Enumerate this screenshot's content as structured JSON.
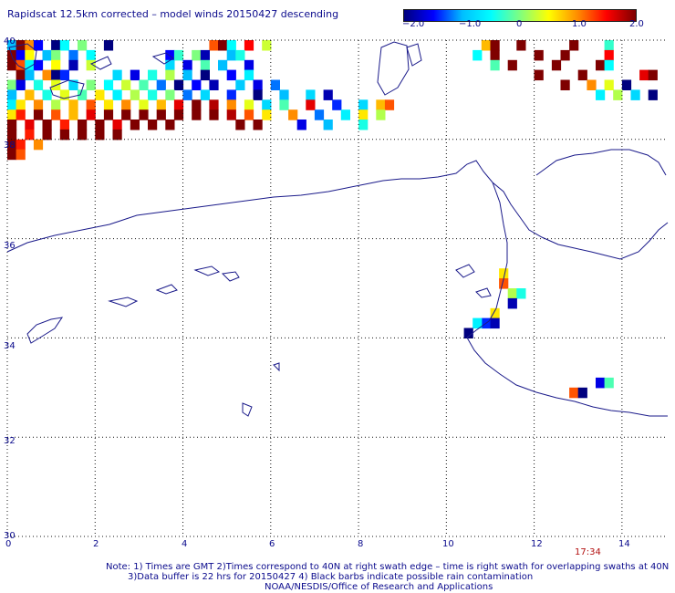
{
  "title": "Rapidscat 12.5km corrected – model winds 20150427 descending",
  "colorbar": {
    "labels": [
      "−2.0",
      "−1.0",
      "0",
      "1.0",
      "2.0"
    ],
    "values": [
      -2.0,
      -1.0,
      0,
      1.0,
      2.0
    ],
    "range": [
      -2.0,
      2.0
    ],
    "colormap": [
      "#00007f",
      "#0000ff",
      "#00bfff",
      "#00ffff",
      "#7fff7f",
      "#ffff00",
      "#ff8c00",
      "#ff0000",
      "#7f0000"
    ]
  },
  "axes": {
    "x_ticks": [
      "0",
      "2",
      "4",
      "6",
      "8",
      "10",
      "12",
      "14"
    ],
    "y_ticks": [
      "40",
      "38",
      "36",
      "34",
      "32",
      "30"
    ],
    "lon_range": [
      0,
      15
    ],
    "lat_range": [
      30,
      40
    ],
    "grid": "dotted"
  },
  "time_label": "17:34",
  "notes": [
    "Note: 1) Times are GMT 2)Times correspond to 40N at right swath edge – time is right swath for overlapping swaths at 40N",
    "3)Data buffer is 22 hrs for 20150427 4) Black barbs indicate possible rain contamination",
    "NOAA/NESDIS/Office of Research and Applications"
  ],
  "chart_data": {
    "type": "heatmap",
    "value_range": [
      -2.0,
      2.0
    ],
    "grid_step_deg": 0.2,
    "regions": [
      {
        "name": "north-west swath",
        "lon_range": [
          0,
          8.8
        ],
        "lat_range": [
          38.4,
          40
        ],
        "values": "mixed -2.0 to 0.5 in north, 1.0 to 2.0 along southern edge"
      },
      {
        "name": "north-east swath",
        "lon_range": [
          10.8,
          14.6
        ],
        "lat_range": [
          38.4,
          40
        ],
        "values": "mostly 2.0 with 0 to -2.0 at edges"
      }
    ],
    "cells": [
      {
        "lon": 0.0,
        "lat": 39.8,
        "v": -1.0
      },
      {
        "lon": 0.2,
        "lat": 39.8,
        "v": 2.0
      },
      {
        "lon": 0.4,
        "lat": 39.8,
        "v": 1.0
      },
      {
        "lon": 0.6,
        "lat": 39.8,
        "v": -1.5
      },
      {
        "lon": 1.0,
        "lat": 39.8,
        "v": -2.0
      },
      {
        "lon": 1.2,
        "lat": 39.8,
        "v": -0.5
      },
      {
        "lon": 1.6,
        "lat": 39.8,
        "v": 0.0
      },
      {
        "lon": 2.2,
        "lat": 39.8,
        "v": -2.0
      },
      {
        "lon": 4.6,
        "lat": 39.8,
        "v": 1.2
      },
      {
        "lon": 4.8,
        "lat": 39.8,
        "v": 2.0
      },
      {
        "lon": 5.0,
        "lat": 39.8,
        "v": -0.5
      },
      {
        "lon": 5.4,
        "lat": 39.8,
        "v": 1.5
      },
      {
        "lon": 5.8,
        "lat": 39.8,
        "v": 0.3
      },
      {
        "lon": 10.8,
        "lat": 39.8,
        "v": 0.8
      },
      {
        "lon": 11.0,
        "lat": 39.8,
        "v": 2.0
      },
      {
        "lon": 11.6,
        "lat": 39.8,
        "v": 2.0
      },
      {
        "lon": 12.8,
        "lat": 39.8,
        "v": 2.0
      },
      {
        "lon": 13.6,
        "lat": 39.8,
        "v": -0.3
      },
      {
        "lon": 0.0,
        "lat": 39.6,
        "v": 2.0
      },
      {
        "lon": 0.2,
        "lat": 39.6,
        "v": -1.5
      },
      {
        "lon": 0.4,
        "lat": 39.6,
        "v": 0.5
      },
      {
        "lon": 0.8,
        "lat": 39.6,
        "v": -1.0
      },
      {
        "lon": 1.0,
        "lat": 39.6,
        "v": 0.0
      },
      {
        "lon": 1.4,
        "lat": 39.6,
        "v": -1.2
      },
      {
        "lon": 1.8,
        "lat": 39.6,
        "v": -0.5
      },
      {
        "lon": 3.6,
        "lat": 39.6,
        "v": -1.5
      },
      {
        "lon": 3.8,
        "lat": 39.6,
        "v": -0.3
      },
      {
        "lon": 4.2,
        "lat": 39.6,
        "v": 0.0
      },
      {
        "lon": 4.4,
        "lat": 39.6,
        "v": -1.8
      },
      {
        "lon": 5.0,
        "lat": 39.6,
        "v": -1.0
      },
      {
        "lon": 5.2,
        "lat": 39.6,
        "v": -0.4
      },
      {
        "lon": 10.6,
        "lat": 39.6,
        "v": -0.5
      },
      {
        "lon": 11.0,
        "lat": 39.6,
        "v": 2.0
      },
      {
        "lon": 12.0,
        "lat": 39.6,
        "v": 2.0
      },
      {
        "lon": 12.6,
        "lat": 39.6,
        "v": 2.0
      },
      {
        "lon": 13.6,
        "lat": 39.6,
        "v": 1.5
      },
      {
        "lon": 0.0,
        "lat": 39.4,
        "v": 2.0
      },
      {
        "lon": 0.2,
        "lat": 39.4,
        "v": 1.2
      },
      {
        "lon": 0.4,
        "lat": 39.4,
        "v": -0.5
      },
      {
        "lon": 0.6,
        "lat": 39.4,
        "v": -1.5
      },
      {
        "lon": 1.0,
        "lat": 39.4,
        "v": 0.5
      },
      {
        "lon": 1.4,
        "lat": 39.4,
        "v": -1.8
      },
      {
        "lon": 1.8,
        "lat": 39.4,
        "v": 0.3
      },
      {
        "lon": 3.6,
        "lat": 39.4,
        "v": -0.8
      },
      {
        "lon": 4.0,
        "lat": 39.4,
        "v": -1.6
      },
      {
        "lon": 4.4,
        "lat": 39.4,
        "v": -0.2
      },
      {
        "lon": 4.8,
        "lat": 39.4,
        "v": -1.0
      },
      {
        "lon": 5.4,
        "lat": 39.4,
        "v": -1.6
      },
      {
        "lon": 11.0,
        "lat": 39.4,
        "v": -0.2
      },
      {
        "lon": 11.4,
        "lat": 39.4,
        "v": 2.0
      },
      {
        "lon": 12.4,
        "lat": 39.4,
        "v": 2.0
      },
      {
        "lon": 13.4,
        "lat": 39.4,
        "v": 2.0
      },
      {
        "lon": 13.6,
        "lat": 39.4,
        "v": -0.5
      },
      {
        "lon": 0.2,
        "lat": 39.2,
        "v": 2.0
      },
      {
        "lon": 0.4,
        "lat": 39.2,
        "v": -1.0
      },
      {
        "lon": 0.8,
        "lat": 39.2,
        "v": 1.0
      },
      {
        "lon": 1.0,
        "lat": 39.2,
        "v": -2.0
      },
      {
        "lon": 1.2,
        "lat": 39.2,
        "v": -1.4
      },
      {
        "lon": 2.4,
        "lat": 39.2,
        "v": -0.8
      },
      {
        "lon": 2.8,
        "lat": 39.2,
        "v": -1.6
      },
      {
        "lon": 3.2,
        "lat": 39.2,
        "v": -0.4
      },
      {
        "lon": 3.6,
        "lat": 39.2,
        "v": 0.2
      },
      {
        "lon": 4.0,
        "lat": 39.2,
        "v": -1.0
      },
      {
        "lon": 4.4,
        "lat": 39.2,
        "v": -2.0
      },
      {
        "lon": 5.0,
        "lat": 39.2,
        "v": -1.5
      },
      {
        "lon": 5.4,
        "lat": 39.2,
        "v": -0.6
      },
      {
        "lon": 12.0,
        "lat": 39.2,
        "v": 2.0
      },
      {
        "lon": 13.0,
        "lat": 39.2,
        "v": 2.0
      },
      {
        "lon": 14.4,
        "lat": 39.2,
        "v": 1.6
      },
      {
        "lon": 14.6,
        "lat": 39.2,
        "v": 2.0
      },
      {
        "lon": 0.0,
        "lat": 39.0,
        "v": 0.0
      },
      {
        "lon": 0.2,
        "lat": 39.0,
        "v": -1.6
      },
      {
        "lon": 0.6,
        "lat": 39.0,
        "v": -0.4
      },
      {
        "lon": 1.0,
        "lat": 39.0,
        "v": 0.4
      },
      {
        "lon": 1.4,
        "lat": 39.0,
        "v": -0.8
      },
      {
        "lon": 1.8,
        "lat": 39.0,
        "v": 0.0
      },
      {
        "lon": 2.2,
        "lat": 39.0,
        "v": -0.5
      },
      {
        "lon": 2.6,
        "lat": 39.0,
        "v": 0.3
      },
      {
        "lon": 3.0,
        "lat": 39.0,
        "v": -0.2
      },
      {
        "lon": 3.4,
        "lat": 39.0,
        "v": -1.2
      },
      {
        "lon": 3.8,
        "lat": 39.0,
        "v": -2.0
      },
      {
        "lon": 4.2,
        "lat": 39.0,
        "v": -1.5
      },
      {
        "lon": 4.6,
        "lat": 39.0,
        "v": -1.8
      },
      {
        "lon": 5.2,
        "lat": 39.0,
        "v": -0.9
      },
      {
        "lon": 5.6,
        "lat": 39.0,
        "v": -1.6
      },
      {
        "lon": 6.0,
        "lat": 39.0,
        "v": -1.2
      },
      {
        "lon": 12.6,
        "lat": 39.0,
        "v": 2.0
      },
      {
        "lon": 13.2,
        "lat": 39.0,
        "v": 1.0
      },
      {
        "lon": 13.6,
        "lat": 39.0,
        "v": 0.4
      },
      {
        "lon": 14.0,
        "lat": 39.0,
        "v": -2.0
      },
      {
        "lon": 0.0,
        "lat": 38.8,
        "v": -1.0
      },
      {
        "lon": 0.4,
        "lat": 38.8,
        "v": 0.8
      },
      {
        "lon": 0.8,
        "lat": 38.8,
        "v": -0.4
      },
      {
        "lon": 1.2,
        "lat": 38.8,
        "v": 0.4
      },
      {
        "lon": 1.6,
        "lat": 38.8,
        "v": -0.2
      },
      {
        "lon": 2.0,
        "lat": 38.8,
        "v": 0.6
      },
      {
        "lon": 2.4,
        "lat": 38.8,
        "v": -0.6
      },
      {
        "lon": 2.8,
        "lat": 38.8,
        "v": 0.2
      },
      {
        "lon": 3.2,
        "lat": 38.8,
        "v": -0.4
      },
      {
        "lon": 3.6,
        "lat": 38.8,
        "v": 0.0
      },
      {
        "lon": 4.0,
        "lat": 38.8,
        "v": -1.2
      },
      {
        "lon": 4.4,
        "lat": 38.8,
        "v": -0.8
      },
      {
        "lon": 5.0,
        "lat": 38.8,
        "v": -1.4
      },
      {
        "lon": 5.6,
        "lat": 38.8,
        "v": -2.0
      },
      {
        "lon": 6.2,
        "lat": 38.8,
        "v": -1.0
      },
      {
        "lon": 6.8,
        "lat": 38.8,
        "v": -0.8
      },
      {
        "lon": 7.2,
        "lat": 38.8,
        "v": -1.8
      },
      {
        "lon": 13.4,
        "lat": 38.8,
        "v": -0.6
      },
      {
        "lon": 13.8,
        "lat": 38.8,
        "v": 0.2
      },
      {
        "lon": 14.2,
        "lat": 38.8,
        "v": -0.8
      },
      {
        "lon": 14.6,
        "lat": 38.8,
        "v": -2.0
      },
      {
        "lon": 0.0,
        "lat": 38.6,
        "v": -0.6
      },
      {
        "lon": 0.2,
        "lat": 38.6,
        "v": 0.6
      },
      {
        "lon": 0.6,
        "lat": 38.6,
        "v": 1.0
      },
      {
        "lon": 1.0,
        "lat": 38.6,
        "v": 0.2
      },
      {
        "lon": 1.4,
        "lat": 38.6,
        "v": 0.8
      },
      {
        "lon": 1.8,
        "lat": 38.6,
        "v": 1.2
      },
      {
        "lon": 2.2,
        "lat": 38.6,
        "v": 0.6
      },
      {
        "lon": 2.6,
        "lat": 38.6,
        "v": 1.0
      },
      {
        "lon": 3.0,
        "lat": 38.6,
        "v": 0.4
      },
      {
        "lon": 3.4,
        "lat": 38.6,
        "v": 0.8
      },
      {
        "lon": 3.8,
        "lat": 38.6,
        "v": 1.6
      },
      {
        "lon": 4.2,
        "lat": 38.6,
        "v": 2.0
      },
      {
        "lon": 4.6,
        "lat": 38.6,
        "v": 1.8
      },
      {
        "lon": 5.0,
        "lat": 38.6,
        "v": 1.0
      },
      {
        "lon": 5.4,
        "lat": 38.6,
        "v": 0.4
      },
      {
        "lon": 5.8,
        "lat": 38.6,
        "v": -0.8
      },
      {
        "lon": 6.2,
        "lat": 38.6,
        "v": -0.2
      },
      {
        "lon": 6.8,
        "lat": 38.6,
        "v": 1.6
      },
      {
        "lon": 7.4,
        "lat": 38.6,
        "v": -1.4
      },
      {
        "lon": 8.0,
        "lat": 38.6,
        "v": -0.8
      },
      {
        "lon": 8.4,
        "lat": 38.6,
        "v": 0.8
      },
      {
        "lon": 8.6,
        "lat": 38.6,
        "v": 1.2
      },
      {
        "lon": 0.0,
        "lat": 38.4,
        "v": 0.6
      },
      {
        "lon": 0.2,
        "lat": 38.4,
        "v": 1.4
      },
      {
        "lon": 0.6,
        "lat": 38.4,
        "v": 2.0
      },
      {
        "lon": 1.0,
        "lat": 38.4,
        "v": 1.2
      },
      {
        "lon": 1.4,
        "lat": 38.4,
        "v": 0.8
      },
      {
        "lon": 1.8,
        "lat": 38.4,
        "v": 1.6
      },
      {
        "lon": 2.2,
        "lat": 38.4,
        "v": 2.0
      },
      {
        "lon": 2.6,
        "lat": 38.4,
        "v": 2.0
      },
      {
        "lon": 3.0,
        "lat": 38.4,
        "v": 2.0
      },
      {
        "lon": 3.4,
        "lat": 38.4,
        "v": 2.0
      },
      {
        "lon": 3.8,
        "lat": 38.4,
        "v": 2.0
      },
      {
        "lon": 4.2,
        "lat": 38.4,
        "v": 2.0
      },
      {
        "lon": 4.6,
        "lat": 38.4,
        "v": 2.0
      },
      {
        "lon": 5.0,
        "lat": 38.4,
        "v": 1.8
      },
      {
        "lon": 5.4,
        "lat": 38.4,
        "v": 1.2
      },
      {
        "lon": 5.8,
        "lat": 38.4,
        "v": 0.6
      },
      {
        "lon": 6.4,
        "lat": 38.4,
        "v": 1.0
      },
      {
        "lon": 7.0,
        "lat": 38.4,
        "v": -1.2
      },
      {
        "lon": 7.6,
        "lat": 38.4,
        "v": -0.6
      },
      {
        "lon": 8.0,
        "lat": 38.4,
        "v": 0.6
      },
      {
        "lon": 8.4,
        "lat": 38.4,
        "v": 0.2
      },
      {
        "lon": 0.0,
        "lat": 38.2,
        "v": 2.0
      },
      {
        "lon": 0.4,
        "lat": 38.2,
        "v": 1.6
      },
      {
        "lon": 0.8,
        "lat": 38.2,
        "v": 2.0
      },
      {
        "lon": 1.2,
        "lat": 38.2,
        "v": 1.4
      },
      {
        "lon": 1.6,
        "lat": 38.2,
        "v": 2.0
      },
      {
        "lon": 2.0,
        "lat": 38.2,
        "v": 2.0
      },
      {
        "lon": 2.4,
        "lat": 38.2,
        "v": 1.6
      },
      {
        "lon": 2.8,
        "lat": 38.2,
        "v": 2.0
      },
      {
        "lon": 3.2,
        "lat": 38.2,
        "v": 2.0
      },
      {
        "lon": 3.6,
        "lat": 38.2,
        "v": 2.0
      },
      {
        "lon": 5.2,
        "lat": 38.2,
        "v": 2.0
      },
      {
        "lon": 5.6,
        "lat": 38.2,
        "v": 2.0
      },
      {
        "lon": 6.6,
        "lat": 38.2,
        "v": -1.6
      },
      {
        "lon": 7.2,
        "lat": 38.2,
        "v": -1.0
      },
      {
        "lon": 8.0,
        "lat": 38.2,
        "v": -0.4
      },
      {
        "lon": 0.0,
        "lat": 38.0,
        "v": 2.0
      },
      {
        "lon": 0.4,
        "lat": 38.0,
        "v": 1.4
      },
      {
        "lon": 0.8,
        "lat": 38.0,
        "v": 2.0
      },
      {
        "lon": 1.2,
        "lat": 38.0,
        "v": 2.0
      },
      {
        "lon": 1.6,
        "lat": 38.0,
        "v": 2.0
      },
      {
        "lon": 2.0,
        "lat": 38.0,
        "v": 2.0
      },
      {
        "lon": 2.4,
        "lat": 38.0,
        "v": 2.0
      },
      {
        "lon": 0.0,
        "lat": 37.8,
        "v": 2.0
      },
      {
        "lon": 0.2,
        "lat": 37.8,
        "v": 1.4
      },
      {
        "lon": 0.6,
        "lat": 37.8,
        "v": 1.0
      },
      {
        "lon": 0.0,
        "lat": 37.6,
        "v": 2.0
      },
      {
        "lon": 0.2,
        "lat": 37.6,
        "v": 1.2
      },
      {
        "lon": 11.2,
        "lat": 35.2,
        "v": 0.6
      },
      {
        "lon": 11.2,
        "lat": 35.0,
        "v": 1.2
      },
      {
        "lon": 11.4,
        "lat": 34.8,
        "v": 0.2
      },
      {
        "lon": 11.6,
        "lat": 34.8,
        "v": -0.4
      },
      {
        "lon": 11.4,
        "lat": 34.6,
        "v": -1.8
      },
      {
        "lon": 11.0,
        "lat": 34.4,
        "v": 0.6
      },
      {
        "lon": 10.8,
        "lat": 34.2,
        "v": -1.4
      },
      {
        "lon": 11.0,
        "lat": 34.2,
        "v": -1.8
      },
      {
        "lon": 10.6,
        "lat": 34.2,
        "v": -0.6
      },
      {
        "lon": 10.4,
        "lat": 34.0,
        "v": -2.0
      },
      {
        "lon": 13.4,
        "lat": 33.0,
        "v": -1.6
      },
      {
        "lon": 13.6,
        "lat": 33.0,
        "v": -0.2
      },
      {
        "lon": 12.8,
        "lat": 32.8,
        "v": 1.2
      },
      {
        "lon": 13.0,
        "lat": 32.8,
        "v": -2.0
      }
    ]
  }
}
